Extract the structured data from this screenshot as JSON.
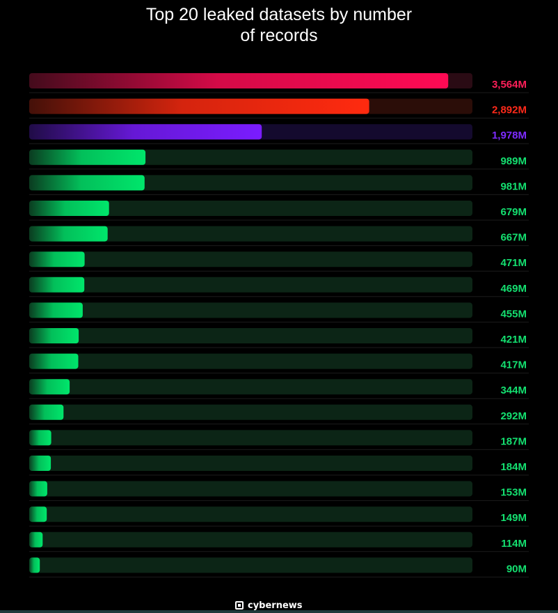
{
  "chart_data": {
    "type": "bar",
    "orientation": "horizontal",
    "title_lines": [
      "Top 20 leaked datasets by number",
      "of records"
    ],
    "values": [
      3564,
      2892,
      1978,
      989,
      981,
      679,
      667,
      471,
      469,
      455,
      421,
      417,
      344,
      292,
      187,
      184,
      153,
      149,
      114,
      90
    ],
    "labels": [
      "3,564M",
      "2,892M",
      "1,978M",
      "989M",
      "981M",
      "679M",
      "667M",
      "471M",
      "469M",
      "455M",
      "421M",
      "417M",
      "344M",
      "292M",
      "187M",
      "184M",
      "153M",
      "149M",
      "114M",
      "90M"
    ],
    "unit": "M",
    "colors": {
      "bar_top1": "#ff0a54",
      "bar_top2": "#ff2a0f",
      "bar_top3": "#7a1cff",
      "bar_default": "#00e66b"
    },
    "track_colors": {
      "track_top1": "#2a0b14",
      "track_top2": "#2b0d08",
      "track_top3": "#140a2e",
      "track_default": "#0c2516"
    },
    "label_colors": {
      "label_top1": "#ff1f59",
      "label_top2": "#ff2a1a",
      "label_top3": "#7d2bff",
      "label_default": "#14e070"
    },
    "grid": false,
    "legend": "none"
  },
  "brand": {
    "name": "cybernews",
    "mark": "®"
  }
}
